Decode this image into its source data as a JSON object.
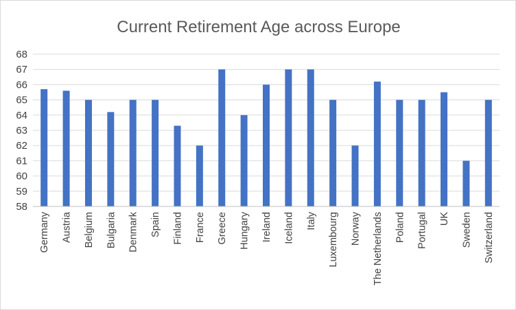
{
  "chart_data": {
    "type": "bar",
    "title": "Current Retirement Age across Europe",
    "xlabel": "",
    "ylabel": "",
    "ylim": [
      58,
      68
    ],
    "yticks": [
      58,
      59,
      60,
      61,
      62,
      63,
      64,
      65,
      66,
      67,
      68
    ],
    "grid": true,
    "legend": "none",
    "bar_color": "#4472c4",
    "categories": [
      "Germany",
      "Austria",
      "Belgium",
      "Bulgaria",
      "Denmark",
      "Spain",
      "Finland",
      "France",
      "Greece",
      "Hungary",
      "Ireland",
      "Iceland",
      "Italy",
      "Luxembourg",
      "Norway",
      "The Netherlands",
      "Poland",
      "Portugal",
      "UK",
      "Sweden",
      "Switzerland"
    ],
    "values": [
      65.7,
      65.6,
      65,
      64.2,
      65,
      65,
      63.3,
      62,
      67,
      64,
      66,
      67,
      67,
      65,
      62,
      66.2,
      65,
      65,
      65.5,
      61,
      65
    ]
  }
}
